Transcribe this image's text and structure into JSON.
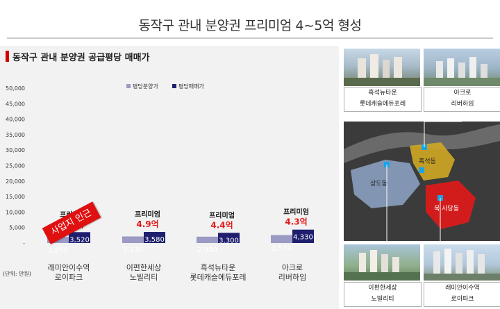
{
  "page": {
    "title": "동작구 관내 분양권 프리미엄 4~5억 형성",
    "section_title": "동작구 관내 분양권 공급평당 매매가"
  },
  "chart_data": {
    "type": "bar",
    "unit_label": "(단위: 만원)",
    "categories": [
      "래미안이수역 로이파크",
      "이편한세상 노빌리티",
      "흑석뉴타운 롯데캐슬에듀포레",
      "아크로 리버하임"
    ],
    "category_lines": [
      [
        "래미안이수역",
        "로이파크"
      ],
      [
        "이편한세상",
        "노빌리티"
      ],
      [
        "흑석뉴타운",
        "롯데캐슬에듀포레"
      ],
      [
        "아크로",
        "리버하임"
      ]
    ],
    "series": [
      {
        "name": "평당분양가",
        "values": [
          1950,
          2130,
          2050,
          2570
        ],
        "labels": [
          "1,950",
          "2,130",
          "2,050",
          "2,570"
        ],
        "color": "#9a9ac4"
      },
      {
        "name": "평당매매가",
        "values": [
          3520,
          3580,
          3300,
          4330
        ],
        "labels": [
          "3,520",
          "3,580",
          "3,300",
          "4,330"
        ],
        "color": "#1f1f6e"
      }
    ],
    "premium_title": "프리미엄",
    "premiums": [
      "5.3억",
      "4.9억",
      "4.4억",
      "4.3억"
    ],
    "ylim": [
      0,
      50000
    ],
    "ytick_labels": [
      "-",
      "5,000",
      "10,000",
      "15,000",
      "20,000",
      "25,000",
      "30,000",
      "35,000",
      "40,000",
      "45,000",
      "50,000"
    ],
    "ytick_values": [
      0,
      5000,
      10000,
      15000,
      20000,
      25000,
      30000,
      35000,
      40000,
      45000,
      50000
    ],
    "legend_position": "top",
    "grid": false,
    "annotation": "사업지 인근",
    "colors": {
      "premium": "#e31b1b",
      "premium_title": "#111111",
      "annotation_bg": "#e01010"
    }
  },
  "map_panel": {
    "photos": [
      {
        "line1": "흑석뉴타운",
        "line2": "롯데캐슬에듀포레"
      },
      {
        "line1": "아크로",
        "line2": "리버하임"
      },
      {
        "line1": "이편한세상",
        "line2": "노빌리티"
      },
      {
        "line1": "래미안이수역",
        "line2": "로이파크"
      }
    ],
    "regions": {
      "heukseok": "흑석동",
      "sangdo": "상도동",
      "sadang": "북 사당동"
    }
  }
}
